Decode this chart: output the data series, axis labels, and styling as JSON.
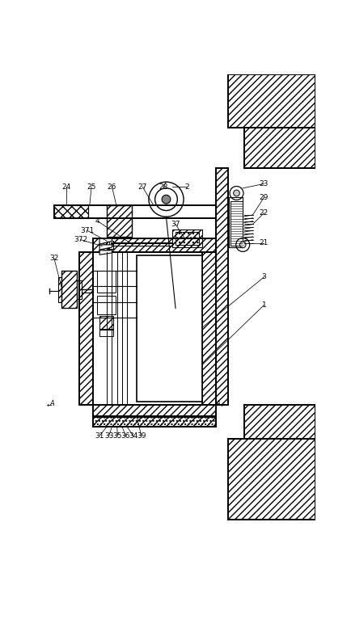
{
  "bg_color": "#ffffff",
  "line_color": "#000000",
  "fig_width": 4.34,
  "fig_height": 7.66,
  "dpi": 100,
  "label_fs": 6.5
}
